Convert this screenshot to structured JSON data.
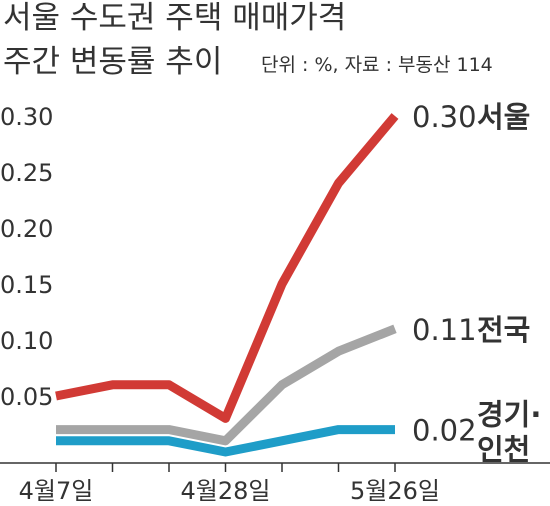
{
  "title": {
    "line1": "서울 수도권 주택 매매가격",
    "line2": "주간 변동률 추이",
    "unit_note": "단위 : %, 자료 : 부동산 114"
  },
  "chart_data": {
    "type": "line",
    "title": "서울 수도권 주택 매매가격 주간 변동률 추이",
    "unit_note": "단위 : %, 자료 : 부동산 114",
    "x": [
      "4월7일",
      "",
      "",
      "4월28일",
      "",
      "",
      "5월26일"
    ],
    "x_tick_labels": [
      "4월7일",
      "4월28일",
      "5월26일"
    ],
    "y_ticks": [
      "0.30",
      "0.25",
      "0.20",
      "0.15",
      "0.10",
      "0.05"
    ],
    "ylim": [
      0,
      0.32
    ],
    "grid": false,
    "series": [
      {
        "name": "서울",
        "color": "#d13a35",
        "values": [
          0.05,
          0.06,
          0.06,
          0.03,
          0.15,
          0.24,
          0.3
        ],
        "end_label": "0.30",
        "label_lines": [
          "서울"
        ]
      },
      {
        "name": "전국",
        "color": "#a5a5a5",
        "values": [
          0.02,
          0.02,
          0.02,
          0.01,
          0.06,
          0.09,
          0.11
        ],
        "end_label": "0.11",
        "label_lines": [
          "전국"
        ]
      },
      {
        "name": "경기·인천",
        "color": "#1f9dc8",
        "values": [
          0.01,
          0.01,
          0.01,
          0.0,
          0.01,
          0.02,
          0.02
        ],
        "end_label": "0.02",
        "label_lines": [
          "경기·",
          "인천"
        ]
      }
    ]
  }
}
